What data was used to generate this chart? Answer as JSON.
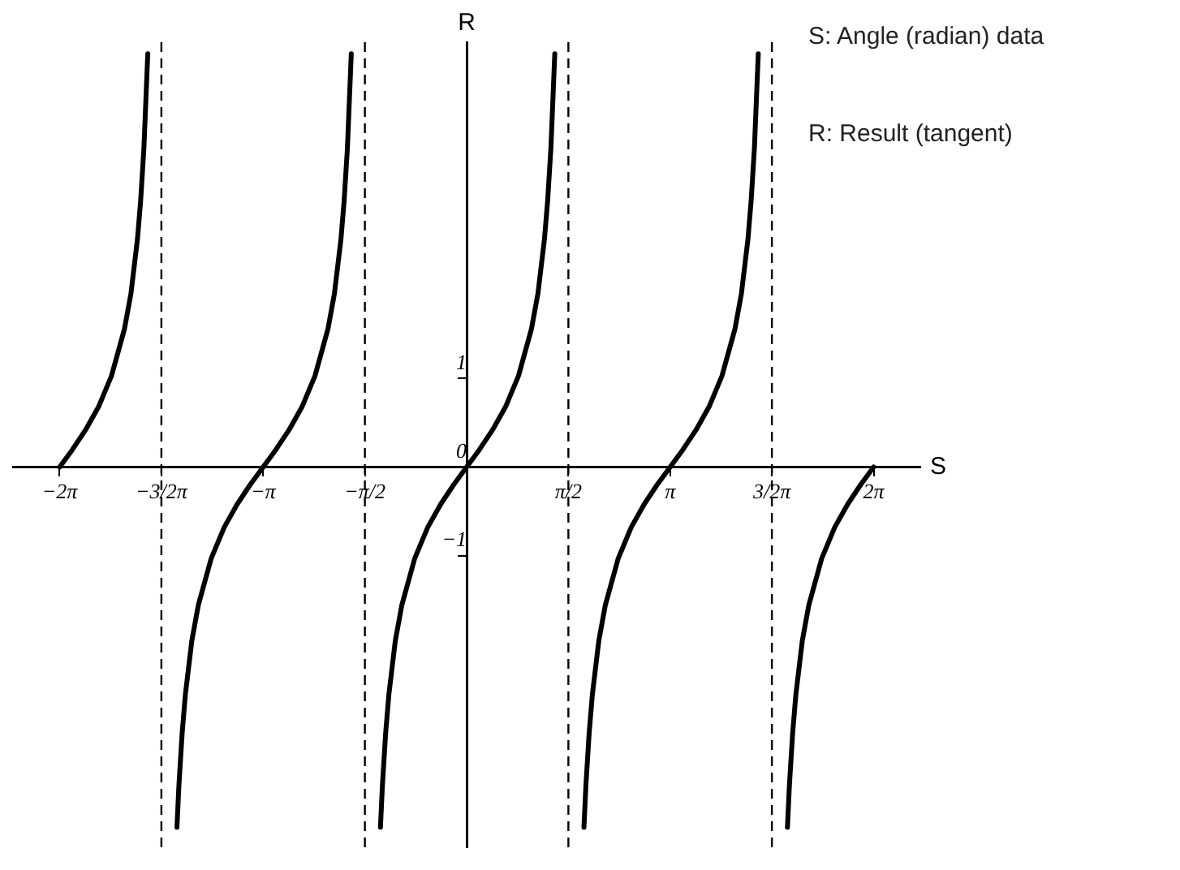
{
  "chart_data": {
    "type": "line",
    "xlabel": "S",
    "ylabel": "R",
    "annotations": [
      "S: Angle (radian) data",
      "R: Result (tangent)"
    ],
    "xlim": [
      -7,
      7
    ],
    "ylim": [
      -4.3,
      4.8
    ],
    "xticks": [
      {
        "value": -6.28,
        "label": "−2π"
      },
      {
        "value": -4.71,
        "label": "−3/2π"
      },
      {
        "value": -3.14,
        "label": "−π"
      },
      {
        "value": -1.57,
        "label": "−π/2"
      },
      {
        "value": 1.57,
        "label": "π/2"
      },
      {
        "value": 3.14,
        "label": "π"
      },
      {
        "value": 4.71,
        "label": "3/2π"
      },
      {
        "value": 6.28,
        "label": "2π"
      }
    ],
    "yticks": [
      {
        "value": -1,
        "label": "−1"
      },
      {
        "value": 0,
        "label": "0"
      },
      {
        "value": 1,
        "label": "1"
      }
    ],
    "grid": false,
    "legend": false,
    "marker": "none",
    "line_style": "solid",
    "ref_lines": [
      {
        "axis": "x",
        "value": -4.71,
        "color": "#000000",
        "line_style": "dashed"
      },
      {
        "axis": "x",
        "value": -1.57,
        "color": "#000000",
        "line_style": "dashed"
      },
      {
        "axis": "x",
        "value": 1.57,
        "color": "#000000",
        "line_style": "dashed"
      },
      {
        "axis": "x",
        "value": 4.71,
        "color": "#000000",
        "line_style": "dashed"
      }
    ],
    "series": [
      {
        "color": "#000000",
        "x": [
          -6.28,
          -6.08,
          -5.88,
          -5.68,
          -5.48,
          -5.28,
          -5.18,
          -5.08,
          -5.03,
          -4.98,
          -4.92
        ],
        "values": [
          0,
          0.2,
          0.42,
          0.68,
          1.03,
          1.56,
          1.96,
          2.57,
          3.01,
          3.6,
          4.67
        ]
      },
      {
        "color": "#000000",
        "x": [
          -4.47,
          -4.44,
          -4.39,
          -4.34,
          -4.24,
          -4.14,
          -3.94,
          -3.74,
          -3.54,
          -3.34,
          -3.14,
          -2.94,
          -2.74,
          -2.54,
          -2.34,
          -2.14,
          -2.04,
          -1.94,
          -1.89,
          -1.84,
          -1.78
        ],
        "values": [
          -4.07,
          -3.6,
          -3.01,
          -2.57,
          -1.96,
          -1.56,
          -1.03,
          -0.68,
          -0.42,
          -0.2,
          0,
          0.2,
          0.42,
          0.68,
          1.03,
          1.56,
          1.96,
          2.57,
          3.01,
          3.6,
          4.67
        ]
      },
      {
        "color": "#000000",
        "x": [
          -1.33,
          -1.3,
          -1.25,
          -1.2,
          -1.1,
          -1.0,
          -0.8,
          -0.6,
          -0.4,
          -0.2,
          0,
          0.2,
          0.4,
          0.6,
          0.8,
          1.0,
          1.1,
          1.2,
          1.25,
          1.3,
          1.36
        ],
        "values": [
          -4.07,
          -3.6,
          -3.01,
          -2.57,
          -1.96,
          -1.56,
          -1.03,
          -0.68,
          -0.42,
          -0.2,
          0,
          0.2,
          0.42,
          0.68,
          1.03,
          1.56,
          1.96,
          2.57,
          3.01,
          3.6,
          4.67
        ]
      },
      {
        "color": "#000000",
        "x": [
          1.81,
          1.84,
          1.89,
          1.94,
          2.04,
          2.14,
          2.34,
          2.54,
          2.74,
          2.94,
          3.14,
          3.34,
          3.54,
          3.74,
          3.94,
          4.14,
          4.24,
          4.34,
          4.39,
          4.44,
          4.5
        ],
        "values": [
          -4.07,
          -3.6,
          -3.01,
          -2.57,
          -1.96,
          -1.56,
          -1.03,
          -0.68,
          -0.42,
          -0.2,
          0,
          0.2,
          0.42,
          0.68,
          1.03,
          1.56,
          1.96,
          2.57,
          3.01,
          3.6,
          4.67
        ]
      },
      {
        "color": "#000000",
        "x": [
          4.95,
          4.98,
          5.03,
          5.08,
          5.18,
          5.28,
          5.48,
          5.68,
          5.88,
          6.08,
          6.28
        ],
        "values": [
          -4.07,
          -3.6,
          -3.01,
          -2.57,
          -1.96,
          -1.56,
          -1.03,
          -0.68,
          -0.42,
          -0.2,
          0
        ]
      }
    ]
  }
}
